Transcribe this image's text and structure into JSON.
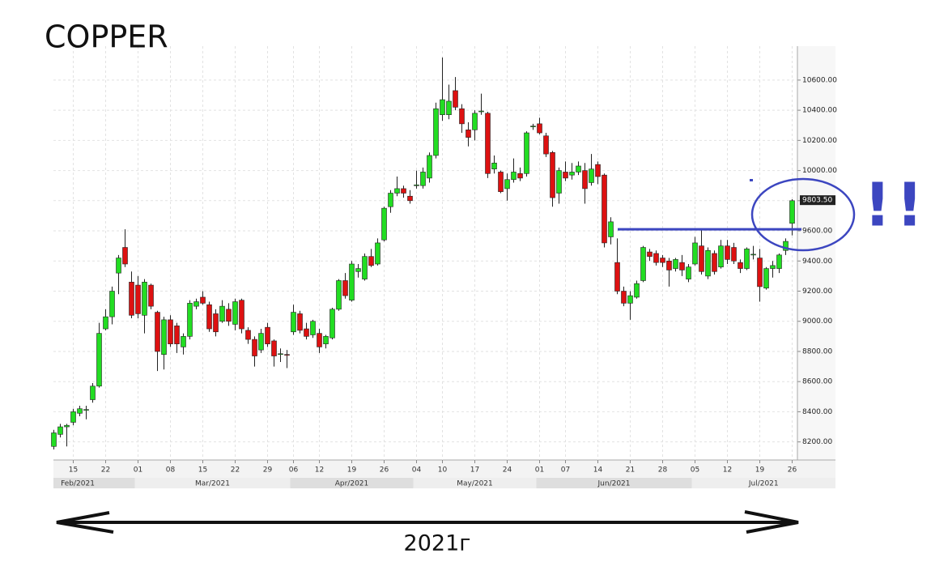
{
  "chart_data": {
    "type": "candlestick",
    "title": "COPPER",
    "footer": "2021г",
    "annotation": "!!",
    "up_color": "#22dd22",
    "down_color": "#dd1111",
    "annotation_color": "#3c46c0",
    "grid": true,
    "ylim": [
      8080,
      10825
    ],
    "yticks": [
      {
        "value": 8200,
        "label": "8200.00"
      },
      {
        "value": 8400,
        "label": "8400.00"
      },
      {
        "value": 8600,
        "label": "8600.00"
      },
      {
        "value": 8800,
        "label": "8800.00"
      },
      {
        "value": 9000,
        "label": "9000.00"
      },
      {
        "value": 9200,
        "label": "9200.00"
      },
      {
        "value": 9400,
        "label": "9400.00"
      },
      {
        "value": 9600,
        "label": "9600.00"
      },
      {
        "value": 9800,
        "label": "9800.00"
      },
      {
        "value": 10000,
        "label": "10000.00"
      },
      {
        "value": 10200,
        "label": "10200.00"
      },
      {
        "value": 10400,
        "label": "10400.00"
      },
      {
        "value": 10600,
        "label": "10600.00"
      }
    ],
    "last_price": {
      "value": 9803.5,
      "label": "9803.50"
    },
    "level_line": 9610,
    "months": [
      "Feb/2021",
      "Mar/2021",
      "Apr/2021",
      "May/2021",
      "Jun/2021",
      "Jul/2021"
    ],
    "categories": [
      null,
      null,
      null,
      "15",
      null,
      null,
      null,
      null,
      "22",
      null,
      null,
      null,
      null,
      "01",
      null,
      null,
      null,
      null,
      "08",
      null,
      null,
      null,
      null,
      "15",
      null,
      null,
      null,
      null,
      "22",
      null,
      null,
      null,
      null,
      "29",
      null,
      null,
      null,
      "06",
      null,
      null,
      null,
      "12",
      null,
      null,
      null,
      null,
      "19",
      null,
      null,
      null,
      null,
      "26",
      null,
      null,
      null,
      null,
      "04",
      null,
      null,
      null,
      "10",
      null,
      null,
      null,
      null,
      "17",
      null,
      null,
      null,
      null,
      "24",
      null,
      null,
      null,
      null,
      "01",
      null,
      null,
      null,
      "07",
      null,
      null,
      null,
      null,
      "14",
      null,
      null,
      null,
      null,
      "21",
      null,
      null,
      null,
      null,
      "28",
      null,
      null,
      null,
      null,
      "05",
      null,
      null,
      null,
      null,
      "12",
      null,
      null,
      null,
      null,
      "19",
      null,
      null,
      null,
      null,
      "26"
    ],
    "open": [
      8170,
      8250,
      8300,
      8330,
      8390,
      8410,
      8480,
      8570,
      8950,
      9030,
      9320,
      9490,
      9260,
      9240,
      9040,
      9240,
      9060,
      8780,
      9010,
      8970,
      8830,
      8900,
      9100,
      9160,
      9110,
      9050,
      9000,
      9080,
      8980,
      9140,
      8940,
      8880,
      8810,
      8960,
      8870,
      8780,
      8780,
      8930,
      9050,
      8950,
      8910,
      8920,
      8850,
      8890,
      9080,
      9270,
      9140,
      9330,
      9280,
      9430,
      9380,
      9540,
      9760,
      9850,
      9880,
      9830,
      9900,
      9900,
      9950,
      10100,
      10370,
      10370,
      10530,
      10410,
      10270,
      10270,
      10390,
      10380,
      10010,
      9990,
      9880,
      9940,
      9980,
      9980,
      10290,
      10310,
      10230,
      10120,
      9850,
      9990,
      9970,
      9990,
      10000,
      9920,
      10040,
      9970,
      9560,
      9390,
      9200,
      9120,
      9160,
      9270,
      9460,
      9450,
      9420,
      9400,
      9350,
      9390,
      9280,
      9380,
      9500,
      9300,
      9450,
      9360,
      9500,
      9490,
      9390,
      9350,
      9440,
      9420,
      9220,
      9350,
      9350,
      9470,
      9650
    ],
    "high": [
      8280,
      8320,
      8320,
      8420,
      8440,
      8440,
      8590,
      8990,
      9080,
      9230,
      9440,
      9610,
      9330,
      9300,
      9280,
      9250,
      9070,
      9030,
      9040,
      8990,
      8920,
      9140,
      9150,
      9200,
      9130,
      9080,
      9140,
      9120,
      9150,
      9150,
      8960,
      8900,
      8950,
      8990,
      8880,
      8820,
      8810,
      9110,
      9070,
      8990,
      9010,
      8950,
      8910,
      9090,
      9280,
      9320,
      9400,
      9380,
      9450,
      9480,
      9550,
      9760,
      9870,
      9960,
      9900,
      9870,
      10000,
      10020,
      10120,
      10450,
      10750,
      10570,
      10620,
      10440,
      10320,
      10400,
      10510,
      10390,
      10100,
      10000,
      9980,
      10080,
      10020,
      10260,
      10310,
      10350,
      10250,
      10130,
      10020,
      10060,
      10050,
      10060,
      10050,
      10110,
      10060,
      9980,
      9690,
      9550,
      9230,
      9200,
      9270,
      9500,
      9480,
      9470,
      9440,
      9420,
      9420,
      9440,
      9380,
      9560,
      9610,
      9490,
      9470,
      9540,
      9540,
      9520,
      9410,
      9490,
      9500,
      9480,
      9360,
      9400,
      9450,
      9550,
      9810
    ],
    "low": [
      8150,
      8230,
      8170,
      8310,
      8370,
      8350,
      8460,
      8560,
      8940,
      8980,
      9180,
      9360,
      9020,
      9020,
      8920,
      9080,
      8670,
      8680,
      8830,
      8790,
      8780,
      8880,
      9080,
      9110,
      8930,
      8900,
      8990,
      8970,
      8940,
      8920,
      8850,
      8700,
      8790,
      8830,
      8700,
      8730,
      8690,
      8910,
      8920,
      8880,
      8890,
      8790,
      8820,
      8880,
      9070,
      9150,
      9130,
      9290,
      9270,
      9360,
      9370,
      9530,
      9720,
      9830,
      9820,
      9780,
      9880,
      9880,
      9920,
      10080,
      10330,
      10340,
      10400,
      10250,
      10160,
      10200,
      10370,
      9950,
      9980,
      9850,
      9800,
      9920,
      9930,
      9960,
      10270,
      10240,
      10090,
      9760,
      9780,
      9930,
      9940,
      9970,
      9780,
      9900,
      9910,
      9490,
      9510,
      9180,
      9100,
      9010,
      9150,
      9260,
      9400,
      9370,
      9360,
      9230,
      9330,
      9300,
      9260,
      9370,
      9310,
      9280,
      9310,
      9350,
      9380,
      9380,
      9320,
      9340,
      9410,
      9130,
      9210,
      9290,
      9320,
      9440,
      9570
    ],
    "close": [
      8260,
      8300,
      8310,
      8400,
      8420,
      8415,
      8570,
      8920,
      9030,
      9200,
      9420,
      9380,
      9040,
      9050,
      9260,
      9100,
      8800,
      9010,
      8850,
      8850,
      8900,
      9120,
      9130,
      9120,
      8950,
      8930,
      9100,
      9000,
      9130,
      8950,
      8880,
      8770,
      8920,
      8850,
      8770,
      8785,
      8775,
      9060,
      8940,
      8900,
      9000,
      8830,
      8900,
      9080,
      9270,
      9170,
      9380,
      9350,
      9430,
      9370,
      9520,
      9750,
      9850,
      9880,
      9850,
      9800,
      9905,
      9990,
      10100,
      10410,
      10470,
      10460,
      10420,
      10310,
      10220,
      10380,
      10395,
      9980,
      10050,
      9860,
      9940,
      9990,
      9950,
      10250,
      10295,
      10250,
      10110,
      9820,
      10000,
      9950,
      9990,
      10030,
      9880,
      10010,
      9960,
      9520,
      9660,
      9200,
      9120,
      9170,
      9250,
      9490,
      9430,
      9390,
      9390,
      9340,
      9410,
      9340,
      9360,
      9520,
      9330,
      9470,
      9330,
      9500,
      9410,
      9400,
      9350,
      9480,
      9445,
      9230,
      9350,
      9370,
      9440,
      9530,
      9800
    ]
  }
}
